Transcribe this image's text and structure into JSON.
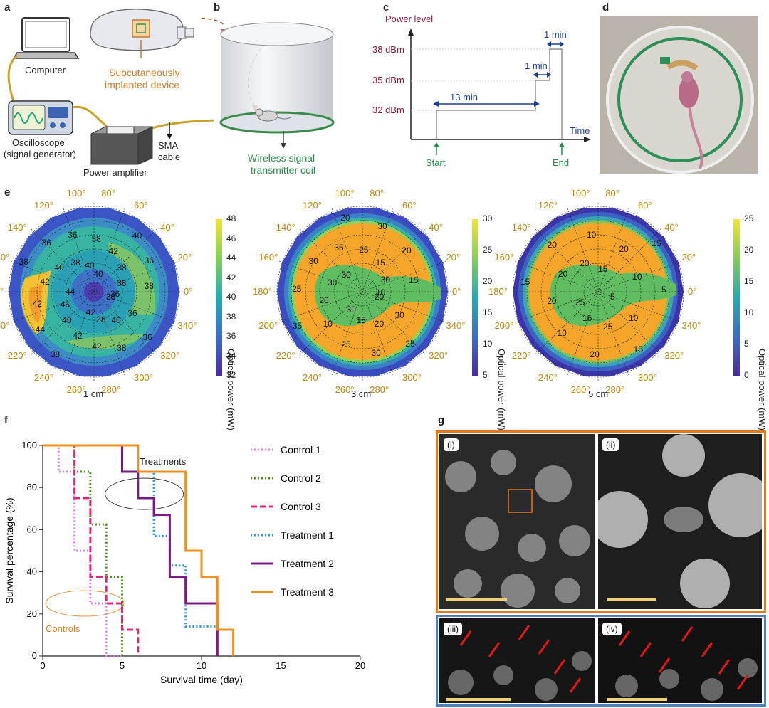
{
  "panels": {
    "a": "a",
    "b": "b",
    "c": "c",
    "d": "d",
    "e": "e",
    "f": "f",
    "g": "g"
  },
  "panel_a": {
    "computer": "Computer",
    "oscilloscope_line1": "Oscilloscope",
    "oscilloscope_line2": "(signal generator)",
    "power_amplifier": "Power amplifier",
    "sma_line1": "SMA",
    "sma_line2": "cable",
    "implant_line1": "Subcutaneously",
    "implant_line2": "implanted device"
  },
  "panel_b": {
    "coil_line1": "Wireless signal",
    "coil_line2": "transmitter coil"
  },
  "panel_c": {
    "ylabel": "Power level",
    "xlabel": "Time",
    "levels": [
      "38 dBm",
      "35 dBm",
      "32 dBm"
    ],
    "durations": [
      "1 min",
      "1 min",
      "13 min"
    ],
    "start": "Start",
    "end": "End"
  },
  "panel_e": {
    "distances": [
      "1 cm",
      "3 cm",
      "5 cm"
    ],
    "angle_labels": [
      "0°",
      "20°",
      "40°",
      "60°",
      "80°",
      "100°",
      "120°",
      "140°",
      "160°",
      "180°",
      "200°",
      "220°",
      "240°",
      "260°",
      "280°",
      "300°",
      "320°",
      "340°"
    ],
    "colorbar_label": "Optical power (mW)",
    "colorbars": [
      [
        "48",
        "46",
        "44",
        "42",
        "40",
        "38",
        "36",
        "34",
        "32"
      ],
      [
        "30",
        "25",
        "20",
        "15",
        "10",
        "5"
      ],
      [
        "25",
        "20",
        "15",
        "10",
        "5",
        "0"
      ]
    ],
    "contours": [
      [
        "38",
        "36",
        "36",
        "40",
        "38",
        "38",
        "42",
        "42",
        "42",
        "38",
        "40",
        "44",
        "46",
        "42",
        "44",
        "42",
        "38",
        "40",
        "36",
        "38",
        "36",
        "40",
        "38",
        "40",
        "42",
        "40",
        "38",
        "36",
        "38",
        "38",
        "36"
      ],
      [
        "20",
        "30",
        "25",
        "20",
        "30",
        "15",
        "25",
        "30",
        "10",
        "35",
        "20",
        "25",
        "30",
        "30",
        "30",
        "35",
        "20",
        "25",
        "30",
        "15",
        "20",
        "30",
        "15",
        "10"
      ],
      [
        "5",
        "10",
        "15",
        "25",
        "20",
        "15",
        "10",
        "25",
        "20",
        "15",
        "20",
        "20",
        "20",
        "10",
        "15",
        "20",
        "15",
        "10",
        "5"
      ]
    ]
  },
  "chart_data": {
    "type": "line",
    "title": "",
    "xlabel": "Survival time (day)",
    "ylabel": "Survival percentage (%)",
    "xlim": [
      0,
      20
    ],
    "ylim": [
      0,
      100
    ],
    "xticks": [
      "0",
      "5",
      "10",
      "15",
      "20"
    ],
    "yticks": [
      "0",
      "20",
      "40",
      "60",
      "80",
      "100"
    ],
    "series": [
      {
        "name": "Control 1",
        "color": "#d37fe0",
        "dash": "2,3",
        "x": [
          0,
          1,
          1,
          2,
          2,
          3,
          3,
          4,
          4,
          5,
          5
        ],
        "y": [
          100,
          100,
          87.5,
          87.5,
          50,
          50,
          25,
          25,
          0,
          0,
          0
        ]
      },
      {
        "name": "Control 2",
        "color": "#4b8a1e",
        "dash": "2,3",
        "x": [
          0,
          2,
          2,
          3,
          3,
          4,
          4,
          5,
          5
        ],
        "y": [
          100,
          100,
          87.5,
          87.5,
          62.5,
          62.5,
          37.5,
          37.5,
          0
        ]
      },
      {
        "name": "Control 3",
        "color": "#e0247a",
        "dash": "9,4",
        "x": [
          0,
          2,
          2,
          3,
          3,
          4,
          4,
          5,
          5,
          6,
          6
        ],
        "y": [
          100,
          100,
          75,
          75,
          37.5,
          37.5,
          25,
          25,
          12.5,
          12.5,
          0
        ]
      },
      {
        "name": "Treatment 1",
        "color": "#2b8fd9",
        "dash": "2,3",
        "x": [
          0,
          5,
          5,
          7,
          7,
          8,
          8,
          9,
          9,
          11,
          11
        ],
        "y": [
          100,
          100,
          87.5,
          87.5,
          57,
          57,
          43,
          43,
          14,
          14,
          0
        ]
      },
      {
        "name": "Treatment 2",
        "color": "#7a1a82",
        "dash": "",
        "x": [
          0,
          5,
          5,
          6,
          6,
          7,
          7,
          8,
          8,
          9,
          9,
          11,
          11
        ],
        "y": [
          100,
          100,
          87.5,
          87.5,
          75,
          75,
          67,
          67,
          37.5,
          37.5,
          25,
          25,
          0
        ]
      },
      {
        "name": "Treatment 3",
        "color": "#f0901e",
        "dash": "",
        "x": [
          0,
          6,
          6,
          9,
          9,
          10,
          10,
          11,
          11,
          12,
          12
        ],
        "y": [
          100,
          100,
          87.5,
          87.5,
          50,
          50,
          37.5,
          37.5,
          12.5,
          12.5,
          0
        ]
      }
    ],
    "annotations": {
      "treatments": "Treatments",
      "controls": "Controls"
    }
  },
  "panel_g": {
    "tags": [
      "(i)",
      "(ii)",
      "(iii)",
      "(iv)"
    ]
  },
  "colors": {
    "accent_orange": "#e07a1c",
    "accent_blue": "#4a7fc0",
    "dark_red": "#8b1a3a",
    "navy": "#1b3d8f",
    "green": "#2a8a4a"
  }
}
